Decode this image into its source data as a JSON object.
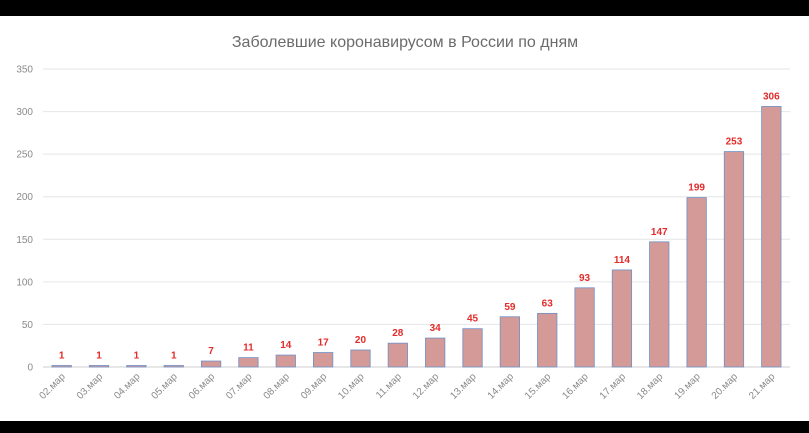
{
  "chart_data": {
    "type": "bar",
    "title": "Заболевшие коронавирусом в России по дням",
    "categories": [
      "02.мар",
      "03.мар",
      "04.мар",
      "05.мар",
      "06.мар",
      "07.мар",
      "08.мар",
      "09.мар",
      "10.мар",
      "11.мар",
      "12.мар",
      "13.мар",
      "14.мар",
      "15.мар",
      "16.мар",
      "17.мар",
      "18.мар",
      "19.мар",
      "20.мар",
      "21.мар"
    ],
    "values": [
      1,
      1,
      1,
      1,
      7,
      11,
      14,
      17,
      20,
      28,
      34,
      45,
      59,
      63,
      93,
      114,
      147,
      199,
      253,
      306
    ],
    "ylim": [
      0,
      350
    ],
    "yticks": [
      0,
      50,
      100,
      150,
      200,
      250,
      300,
      350
    ],
    "grid": true,
    "legend": "none",
    "colors": {
      "bar_fill": "#d49a97",
      "bar_stroke": "#6f8fc7",
      "data_label": "#e32b2b",
      "grid": "#e6e6e6"
    }
  }
}
